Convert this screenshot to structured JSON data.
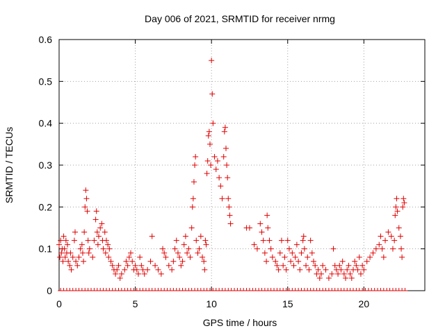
{
  "chart_data": {
    "type": "scatter",
    "title": "Day 006 of 2021, SRMTID for receiver nrmg",
    "xlabel": "GPS time / hours",
    "ylabel": "SRMTID / TECUs",
    "xlim": [
      0,
      24
    ],
    "ylim": [
      0,
      0.6
    ],
    "x_ticks": [
      0,
      5,
      10,
      15,
      20
    ],
    "y_ticks": [
      0,
      0.1,
      0.2,
      0.3,
      0.4,
      0.5,
      0.6
    ],
    "x_tick_labels": [
      "0",
      "5",
      "10",
      "15",
      "20"
    ],
    "y_tick_labels": [
      "0",
      "0.1",
      "0.2",
      "0.3",
      "0.4",
      "0.5",
      "0.6"
    ],
    "grid": true,
    "marker": "+",
    "color": "#e00000",
    "series": [
      {
        "name": "SRMTID",
        "points": [
          [
            0.0,
            0.11
          ],
          [
            0.05,
            0.08
          ],
          [
            0.1,
            0.12
          ],
          [
            0.15,
            0.09
          ],
          [
            0.2,
            0.1
          ],
          [
            0.25,
            0.07
          ],
          [
            0.3,
            0.13
          ],
          [
            0.35,
            0.1
          ],
          [
            0.4,
            0.08
          ],
          [
            0.45,
            0.12
          ],
          [
            0.5,
            0.09
          ],
          [
            0.55,
            0.11
          ],
          [
            0.6,
            0.07
          ],
          [
            0.7,
            0.06
          ],
          [
            0.75,
            0.09
          ],
          [
            0.8,
            0.05
          ],
          [
            0.9,
            0.08
          ],
          [
            1.0,
            0.12
          ],
          [
            1.05,
            0.14
          ],
          [
            1.1,
            0.07
          ],
          [
            1.2,
            0.06
          ],
          [
            1.3,
            0.08
          ],
          [
            1.4,
            0.1
          ],
          [
            1.5,
            0.11
          ],
          [
            1.55,
            0.09
          ],
          [
            1.6,
            0.07
          ],
          [
            1.65,
            0.14
          ],
          [
            1.7,
            0.2
          ],
          [
            1.75,
            0.24
          ],
          [
            1.8,
            0.22
          ],
          [
            1.85,
            0.19
          ],
          [
            1.9,
            0.12
          ],
          [
            1.95,
            0.09
          ],
          [
            2.0,
            0.1
          ],
          [
            2.2,
            0.08
          ],
          [
            2.3,
            0.12
          ],
          [
            2.4,
            0.17
          ],
          [
            2.45,
            0.19
          ],
          [
            2.5,
            0.14
          ],
          [
            2.55,
            0.11
          ],
          [
            2.6,
            0.13
          ],
          [
            2.7,
            0.15
          ],
          [
            2.8,
            0.16
          ],
          [
            2.85,
            0.12
          ],
          [
            2.9,
            0.1
          ],
          [
            3.0,
            0.14
          ],
          [
            3.05,
            0.09
          ],
          [
            3.1,
            0.12
          ],
          [
            3.2,
            0.11
          ],
          [
            3.25,
            0.08
          ],
          [
            3.3,
            0.1
          ],
          [
            3.4,
            0.07
          ],
          [
            3.5,
            0.06
          ],
          [
            3.6,
            0.05
          ],
          [
            3.7,
            0.04
          ],
          [
            3.8,
            0.05
          ],
          [
            3.9,
            0.06
          ],
          [
            4.0,
            0.03
          ],
          [
            4.1,
            0.04
          ],
          [
            4.3,
            0.05
          ],
          [
            4.4,
            0.07
          ],
          [
            4.5,
            0.06
          ],
          [
            4.6,
            0.08
          ],
          [
            4.7,
            0.09
          ],
          [
            4.8,
            0.07
          ],
          [
            4.9,
            0.05
          ],
          [
            5.0,
            0.06
          ],
          [
            5.1,
            0.05
          ],
          [
            5.2,
            0.04
          ],
          [
            5.3,
            0.08
          ],
          [
            5.4,
            0.06
          ],
          [
            5.5,
            0.05
          ],
          [
            5.6,
            0.04
          ],
          [
            5.8,
            0.05
          ],
          [
            6.0,
            0.07
          ],
          [
            6.1,
            0.13
          ],
          [
            6.3,
            0.06
          ],
          [
            6.5,
            0.05
          ],
          [
            6.7,
            0.04
          ],
          [
            6.8,
            0.1
          ],
          [
            6.9,
            0.09
          ],
          [
            7.0,
            0.08
          ],
          [
            7.2,
            0.06
          ],
          [
            7.4,
            0.05
          ],
          [
            7.5,
            0.07
          ],
          [
            7.6,
            0.1
          ],
          [
            7.7,
            0.12
          ],
          [
            7.8,
            0.09
          ],
          [
            7.9,
            0.08
          ],
          [
            8.0,
            0.06
          ],
          [
            8.1,
            0.07
          ],
          [
            8.2,
            0.11
          ],
          [
            8.3,
            0.13
          ],
          [
            8.4,
            0.09
          ],
          [
            8.5,
            0.1
          ],
          [
            8.6,
            0.08
          ],
          [
            8.7,
            0.15
          ],
          [
            8.75,
            0.2
          ],
          [
            8.8,
            0.22
          ],
          [
            8.85,
            0.26
          ],
          [
            8.9,
            0.3
          ],
          [
            8.95,
            0.32
          ],
          [
            9.0,
            0.12
          ],
          [
            9.1,
            0.09
          ],
          [
            9.2,
            0.1
          ],
          [
            9.3,
            0.13
          ],
          [
            9.4,
            0.08
          ],
          [
            9.5,
            0.07
          ],
          [
            9.55,
            0.05
          ],
          [
            9.6,
            0.12
          ],
          [
            9.65,
            0.11
          ],
          [
            9.7,
            0.28
          ],
          [
            9.75,
            0.31
          ],
          [
            9.8,
            0.37
          ],
          [
            9.85,
            0.38
          ],
          [
            9.9,
            0.35
          ],
          [
            9.95,
            0.3
          ],
          [
            10.0,
            0.55
          ],
          [
            10.05,
            0.47
          ],
          [
            10.1,
            0.4
          ],
          [
            10.2,
            0.32
          ],
          [
            10.3,
            0.29
          ],
          [
            10.4,
            0.31
          ],
          [
            10.5,
            0.27
          ],
          [
            10.6,
            0.25
          ],
          [
            10.7,
            0.22
          ],
          [
            10.8,
            0.32
          ],
          [
            10.85,
            0.38
          ],
          [
            10.9,
            0.39
          ],
          [
            10.95,
            0.34
          ],
          [
            11.0,
            0.3
          ],
          [
            11.05,
            0.27
          ],
          [
            11.1,
            0.22
          ],
          [
            11.15,
            0.2
          ],
          [
            11.2,
            0.18
          ],
          [
            11.25,
            0.16
          ],
          [
            12.3,
            0.15
          ],
          [
            12.5,
            0.15
          ],
          [
            12.8,
            0.11
          ],
          [
            13.0,
            0.1
          ],
          [
            13.2,
            0.16
          ],
          [
            13.3,
            0.14
          ],
          [
            13.4,
            0.12
          ],
          [
            13.5,
            0.09
          ],
          [
            13.6,
            0.07
          ],
          [
            13.65,
            0.18
          ],
          [
            13.7,
            0.15
          ],
          [
            13.8,
            0.12
          ],
          [
            13.9,
            0.1
          ],
          [
            14.0,
            0.08
          ],
          [
            14.2,
            0.07
          ],
          [
            14.3,
            0.06
          ],
          [
            14.4,
            0.05
          ],
          [
            14.5,
            0.09
          ],
          [
            14.6,
            0.12
          ],
          [
            14.7,
            0.06
          ],
          [
            14.8,
            0.08
          ],
          [
            14.9,
            0.05
          ],
          [
            15.0,
            0.12
          ],
          [
            15.1,
            0.1
          ],
          [
            15.2,
            0.07
          ],
          [
            15.3,
            0.09
          ],
          [
            15.4,
            0.06
          ],
          [
            15.5,
            0.08
          ],
          [
            15.6,
            0.11
          ],
          [
            15.7,
            0.07
          ],
          [
            15.8,
            0.05
          ],
          [
            15.9,
            0.09
          ],
          [
            16.0,
            0.12
          ],
          [
            16.05,
            0.13
          ],
          [
            16.1,
            0.1
          ],
          [
            16.2,
            0.06
          ],
          [
            16.3,
            0.08
          ],
          [
            16.4,
            0.05
          ],
          [
            16.5,
            0.12
          ],
          [
            16.6,
            0.09
          ],
          [
            16.7,
            0.07
          ],
          [
            16.8,
            0.06
          ],
          [
            16.9,
            0.04
          ],
          [
            17.0,
            0.05
          ],
          [
            17.1,
            0.03
          ],
          [
            17.2,
            0.04
          ],
          [
            17.3,
            0.06
          ],
          [
            17.5,
            0.05
          ],
          [
            17.7,
            0.03
          ],
          [
            17.9,
            0.04
          ],
          [
            18.0,
            0.1
          ],
          [
            18.1,
            0.06
          ],
          [
            18.2,
            0.05
          ],
          [
            18.3,
            0.04
          ],
          [
            18.4,
            0.06
          ],
          [
            18.5,
            0.05
          ],
          [
            18.6,
            0.07
          ],
          [
            18.7,
            0.04
          ],
          [
            18.8,
            0.03
          ],
          [
            18.9,
            0.05
          ],
          [
            19.0,
            0.06
          ],
          [
            19.1,
            0.04
          ],
          [
            19.2,
            0.03
          ],
          [
            19.3,
            0.05
          ],
          [
            19.4,
            0.07
          ],
          [
            19.5,
            0.06
          ],
          [
            19.6,
            0.05
          ],
          [
            19.7,
            0.08
          ],
          [
            19.8,
            0.04
          ],
          [
            19.9,
            0.06
          ],
          [
            20.0,
            0.05
          ],
          [
            20.2,
            0.07
          ],
          [
            20.4,
            0.08
          ],
          [
            20.6,
            0.09
          ],
          [
            20.8,
            0.1
          ],
          [
            21.0,
            0.11
          ],
          [
            21.1,
            0.13
          ],
          [
            21.2,
            0.1
          ],
          [
            21.3,
            0.08
          ],
          [
            21.4,
            0.12
          ],
          [
            21.6,
            0.14
          ],
          [
            21.8,
            0.13
          ],
          [
            21.9,
            0.1
          ],
          [
            22.0,
            0.12
          ],
          [
            22.05,
            0.18
          ],
          [
            22.1,
            0.2
          ],
          [
            22.15,
            0.22
          ],
          [
            22.2,
            0.19
          ],
          [
            22.3,
            0.15
          ],
          [
            22.4,
            0.13
          ],
          [
            22.45,
            0.1
          ],
          [
            22.5,
            0.08
          ],
          [
            22.55,
            0.2
          ],
          [
            22.6,
            0.22
          ],
          [
            22.65,
            0.21
          ]
        ]
      }
    ],
    "zero_marks_x": [
      0.1,
      0.3,
      0.5,
      0.7,
      0.9,
      1.1,
      1.3,
      1.5,
      1.7,
      1.9,
      2.1,
      2.3,
      2.5,
      2.7,
      2.9,
      3.1,
      3.3,
      3.5,
      3.7,
      3.9,
      4.1,
      4.3,
      4.5,
      4.7,
      4.9,
      5.1,
      5.3,
      5.5,
      5.7,
      5.9,
      6.1,
      6.3,
      6.5,
      6.7,
      6.9,
      7.1,
      7.3,
      7.5,
      7.7,
      7.9,
      8.1,
      8.3,
      8.5,
      8.7,
      8.9,
      9.1,
      9.3,
      9.5,
      9.7,
      9.9,
      10.1,
      10.3,
      10.5,
      10.7,
      10.9,
      11.1,
      11.3,
      11.5,
      11.7,
      11.9,
      12.1,
      12.3,
      12.5,
      12.7,
      12.9,
      13.1,
      13.3,
      13.5,
      13.7,
      13.9,
      14.1,
      14.3,
      14.5,
      14.7,
      14.9,
      15.1,
      15.3,
      15.5,
      15.7,
      15.9,
      16.1,
      16.3,
      16.5,
      16.7,
      16.9,
      17.1,
      17.3,
      17.5,
      17.7,
      17.9,
      18.1,
      18.3,
      18.5,
      18.7,
      18.9,
      19.1,
      19.3,
      19.5,
      19.7,
      19.9,
      20.1,
      20.3,
      20.5,
      20.7,
      20.9,
      21.1,
      21.3,
      21.5,
      21.7,
      21.9,
      22.1,
      22.3,
      22.5,
      22.7
    ]
  }
}
